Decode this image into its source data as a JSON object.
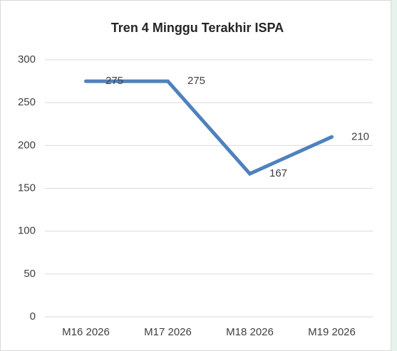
{
  "chart_data": {
    "type": "line",
    "title": "Tren 4 Minggu Terakhir ISPA",
    "categories": [
      "M16 2026",
      "M17 2026",
      "M18 2026",
      "M19 2026"
    ],
    "series": [
      {
        "name": "ISPA",
        "color": "#4f81bd",
        "values": [
          275,
          275,
          167,
          210
        ]
      }
    ],
    "ylim": [
      0,
      300
    ],
    "yticks": [
      0,
      50,
      100,
      150,
      200,
      250,
      300
    ],
    "grid": true
  }
}
